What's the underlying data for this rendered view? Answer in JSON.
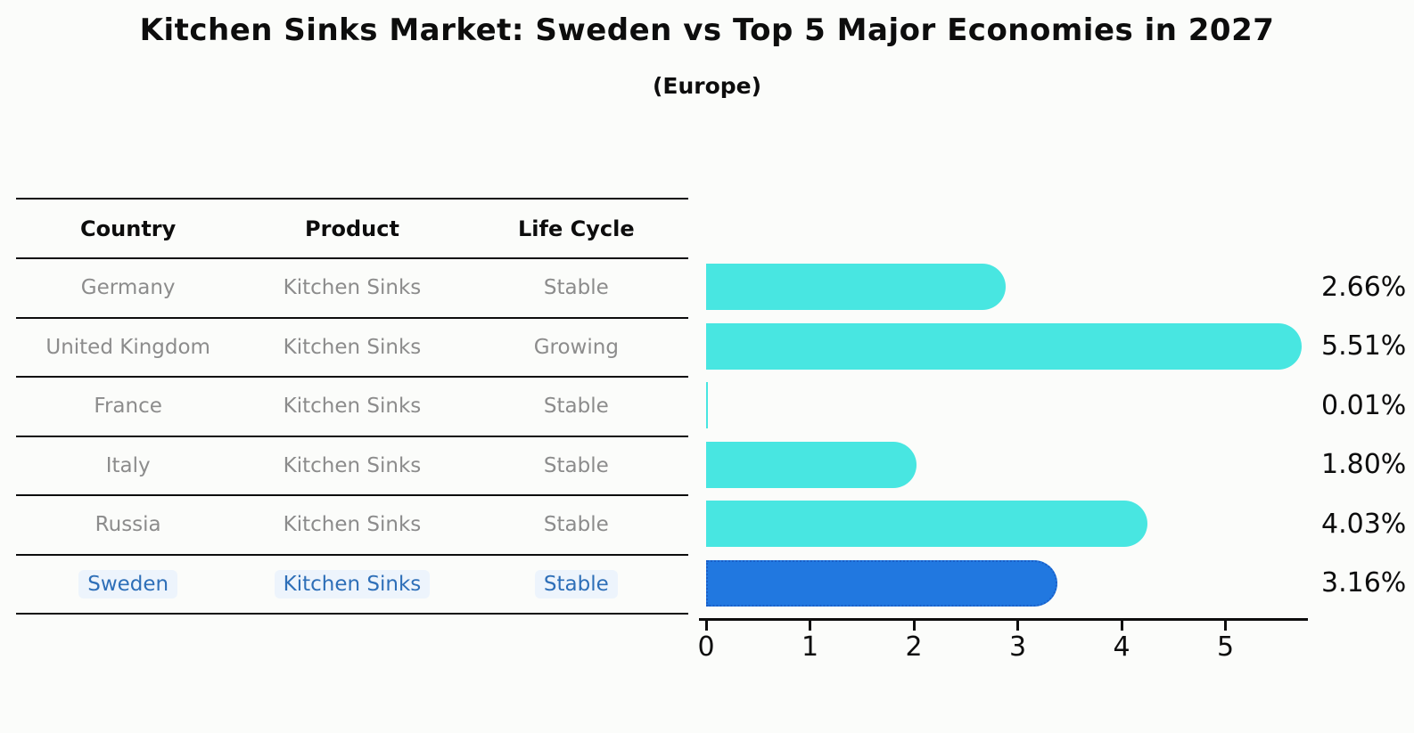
{
  "title": "Kitchen Sinks Market: Sweden vs Top 5 Major Economies in 2027",
  "subtitle": "(Europe)",
  "table": {
    "headers": [
      "Country",
      "Product",
      "Life Cycle"
    ],
    "rows": [
      {
        "country": "Germany",
        "product": "Kitchen Sinks",
        "life_cycle": "Stable",
        "highlighted": false
      },
      {
        "country": "United Kingdom",
        "product": "Kitchen Sinks",
        "life_cycle": "Growing",
        "highlighted": false
      },
      {
        "country": "France",
        "product": "Kitchen Sinks",
        "life_cycle": "Stable",
        "highlighted": false
      },
      {
        "country": "Italy",
        "product": "Kitchen Sinks",
        "life_cycle": "Stable",
        "highlighted": false
      },
      {
        "country": "Russia",
        "product": "Kitchen Sinks",
        "life_cycle": "Stable",
        "highlighted": false
      },
      {
        "country": "Sweden",
        "product": "Kitchen Sinks",
        "life_cycle": "Stable",
        "highlighted": true
      }
    ]
  },
  "chart_data": {
    "type": "bar",
    "orientation": "horizontal",
    "categories": [
      "Germany",
      "United Kingdom",
      "France",
      "Italy",
      "Russia",
      "Sweden"
    ],
    "values": [
      2.66,
      5.51,
      0.01,
      1.8,
      4.03,
      3.16
    ],
    "value_labels": [
      "2.66%",
      "5.51%",
      "0.01%",
      "1.80%",
      "4.03%",
      "3.16%"
    ],
    "x_ticks": [
      "0",
      "1",
      "2",
      "3",
      "4",
      "5"
    ],
    "xlim": [
      0,
      5.8
    ],
    "grid": false,
    "legend": null,
    "bar_color": "#48e6e1",
    "highlight_bar_color": "#2178e0",
    "highlight_bar_border_color": "#1a5fc8",
    "highlight_text_color": "#2e6fb8",
    "highlighted_category": "Sweden"
  }
}
